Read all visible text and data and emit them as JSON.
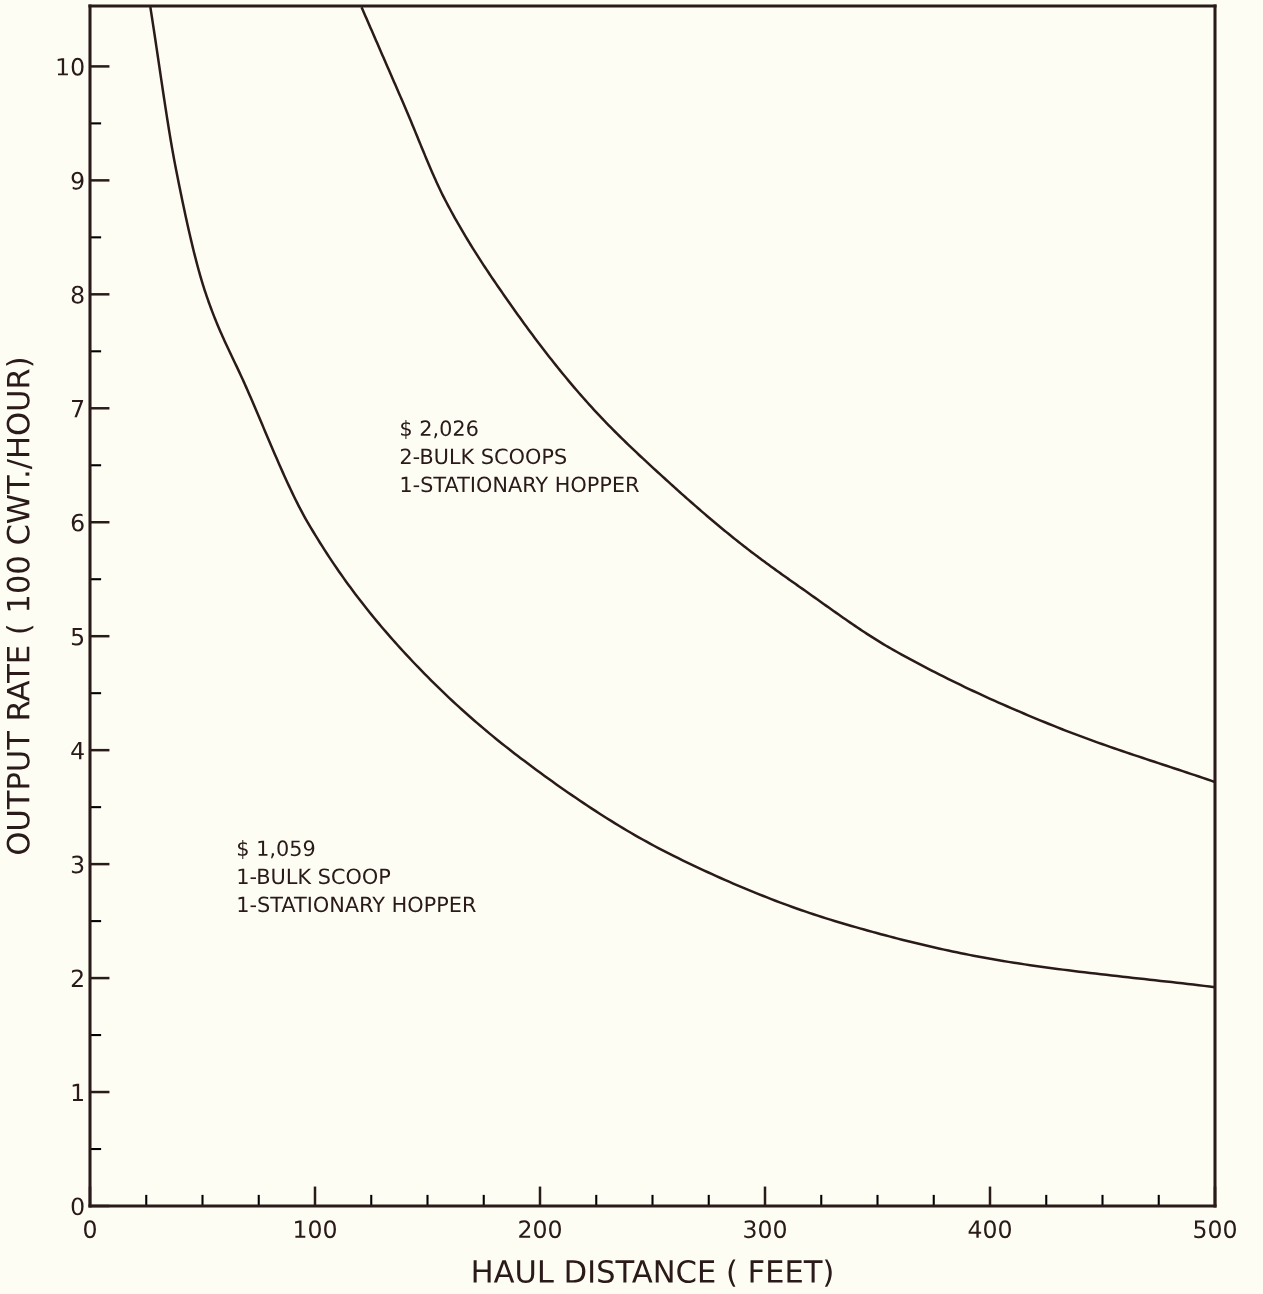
{
  "chart_data": {
    "type": "line",
    "xlabel": "HAUL DISTANCE ( FEET)",
    "ylabel": "OUTPUT RATE ( 100 CWT./HOUR)",
    "annotations": [
      "$ 1,059\n1-BULK SCOOP\n1-STATIONARY HOPPER",
      "$ 2,026\n2-BULK SCOOPS\n1-STATIONARY HOPPER"
    ],
    "series": [
      {
        "color": "#2b1a1a",
        "x": [
          26.9,
          38,
          50.9,
          69.3,
          97,
          137.7,
          191.4,
          259.6,
          332.8,
          405.8,
          500
        ],
        "values": [
          10.51,
          9.12,
          8.04,
          7.19,
          5.99,
          4.9,
          3.93,
          3.07,
          2.49,
          2.15,
          1.92
        ]
      },
      {
        "color": "#2b1a1a",
        "x": [
          120.9,
          139.4,
          157.8,
          185.5,
          222,
          259,
          290,
          315.6,
          357,
          430,
          500
        ],
        "values": [
          10.51,
          9.67,
          8.83,
          7.95,
          7.03,
          6.32,
          5.8,
          5.43,
          4.88,
          4.2,
          3.72
        ]
      }
    ],
    "xlim": [
      0,
      500
    ],
    "ylim": [
      0,
      10.53
    ],
    "xticks": [
      0,
      {
        "value": 25,
        "label": null
      },
      {
        "value": 50,
        "label": null
      },
      {
        "value": 75,
        "label": null
      },
      100,
      {
        "value": 125,
        "label": null
      },
      {
        "value": 150,
        "label": null
      },
      {
        "value": 175,
        "label": null
      },
      200,
      {
        "value": 225,
        "label": null
      },
      {
        "value": 250,
        "label": null
      },
      {
        "value": 275,
        "label": null
      },
      300,
      {
        "value": 325,
        "label": null
      },
      {
        "value": 350,
        "label": null
      },
      {
        "value": 375,
        "label": null
      },
      400,
      {
        "value": 425,
        "label": null
      },
      {
        "value": 450,
        "label": null
      },
      {
        "value": 475,
        "label": null
      },
      500
    ],
    "yticks": [
      0,
      {
        "value": 0.5,
        "label": null
      },
      1,
      {
        "value": 1.5,
        "label": null
      },
      2,
      {
        "value": 2.5,
        "label": null
      },
      3,
      {
        "value": 3.5,
        "label": null
      },
      4,
      {
        "value": 4.5,
        "label": null
      },
      5,
      {
        "value": 5.5,
        "label": null
      },
      6,
      {
        "value": 6.5,
        "label": null
      },
      7,
      {
        "value": 7.5,
        "label": null
      },
      8,
      {
        "value": 8.5,
        "label": null
      },
      9,
      {
        "value": 9.5,
        "label": null
      },
      10
    ],
    "grid": false,
    "legend": false,
    "marker": "none",
    "line_style": "solid"
  }
}
